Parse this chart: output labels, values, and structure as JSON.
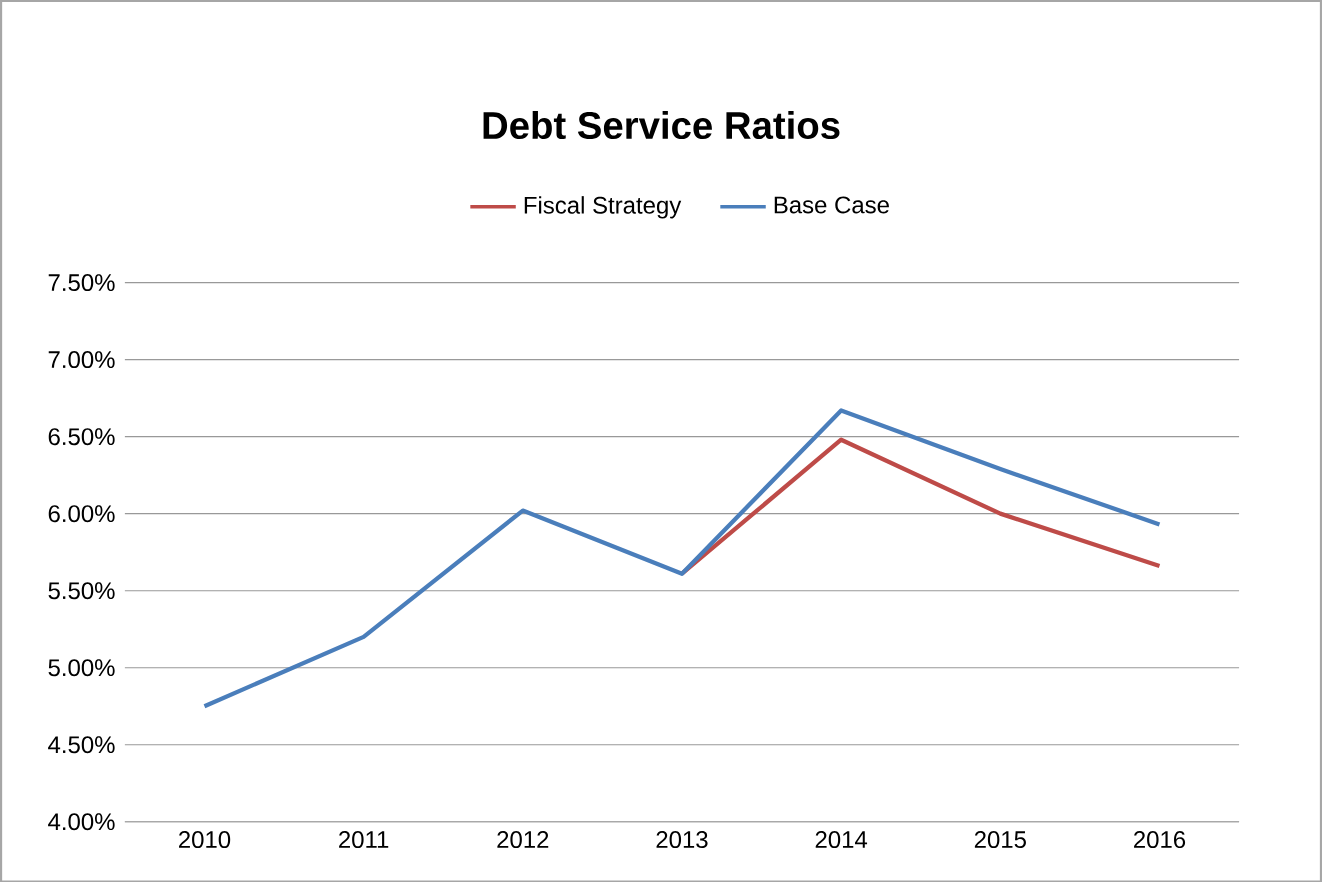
{
  "chart_data": {
    "type": "line",
    "title": "Debt Service Ratios",
    "categories": [
      "2010",
      "2011",
      "2012",
      "2013",
      "2014",
      "2015",
      "2016"
    ],
    "series": [
      {
        "name": "Fiscal Strategy",
        "color": "#be4b48",
        "values": [
          null,
          null,
          null,
          5.61,
          6.48,
          6.0,
          5.66
        ]
      },
      {
        "name": "Base Case",
        "color": "#4a7ebb",
        "values": [
          4.75,
          5.2,
          6.02,
          5.61,
          6.67,
          6.29,
          5.93
        ]
      }
    ],
    "ylim": [
      4.0,
      7.5
    ],
    "yticks": [
      {
        "value": 4.0,
        "label": "4.00%"
      },
      {
        "value": 4.5,
        "label": "4.50%"
      },
      {
        "value": 5.0,
        "label": "5.00%"
      },
      {
        "value": 5.5,
        "label": "5.50%"
      },
      {
        "value": 6.0,
        "label": "6.00%"
      },
      {
        "value": 6.5,
        "label": "6.50%"
      },
      {
        "value": 7.0,
        "label": "7.00%"
      },
      {
        "value": 7.5,
        "label": "7.50%"
      }
    ],
    "grid": "y",
    "legend": "top",
    "marker": "none",
    "line_style": "solid"
  }
}
